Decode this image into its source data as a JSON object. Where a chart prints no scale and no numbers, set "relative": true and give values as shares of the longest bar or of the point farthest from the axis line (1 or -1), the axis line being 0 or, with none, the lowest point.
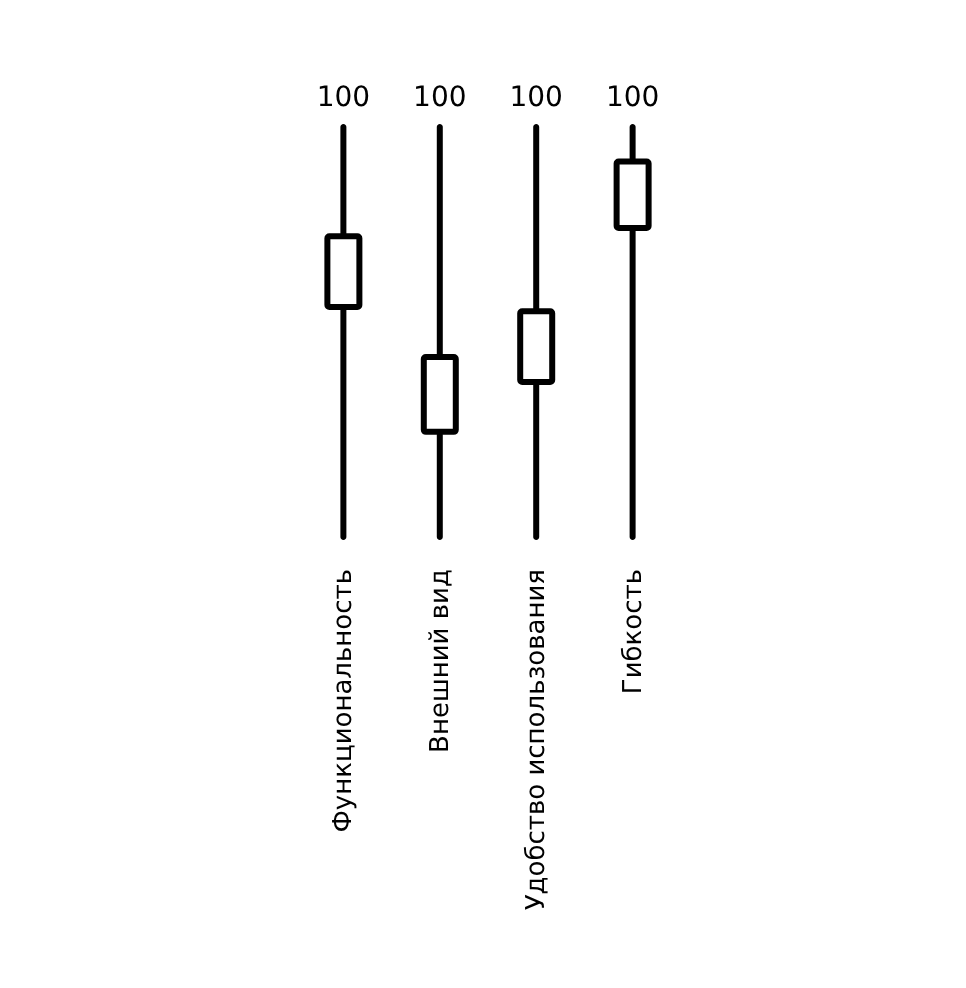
{
  "chart_data": {
    "type": "bar",
    "categories": [
      "Функциональность",
      "Внешний вид",
      "Удобство использования",
      "Гибкость"
    ],
    "stacked": true,
    "relative": true,
    "series": [
      {
        "color": "#000000",
        "values": [
          0.56,
          0.26,
          0.38,
          0.75
        ]
      },
      {
        "color": "#ffffff",
        "values": [
          0.17,
          0.18,
          0.17,
          0.16
        ]
      },
      {
        "color": "#000000",
        "values": [
          0.27,
          0.56,
          0.45,
          0.09
        ]
      }
    ],
    "annotations": [
      "100",
      "100",
      "100",
      "100"
    ],
    "grid": false
  }
}
